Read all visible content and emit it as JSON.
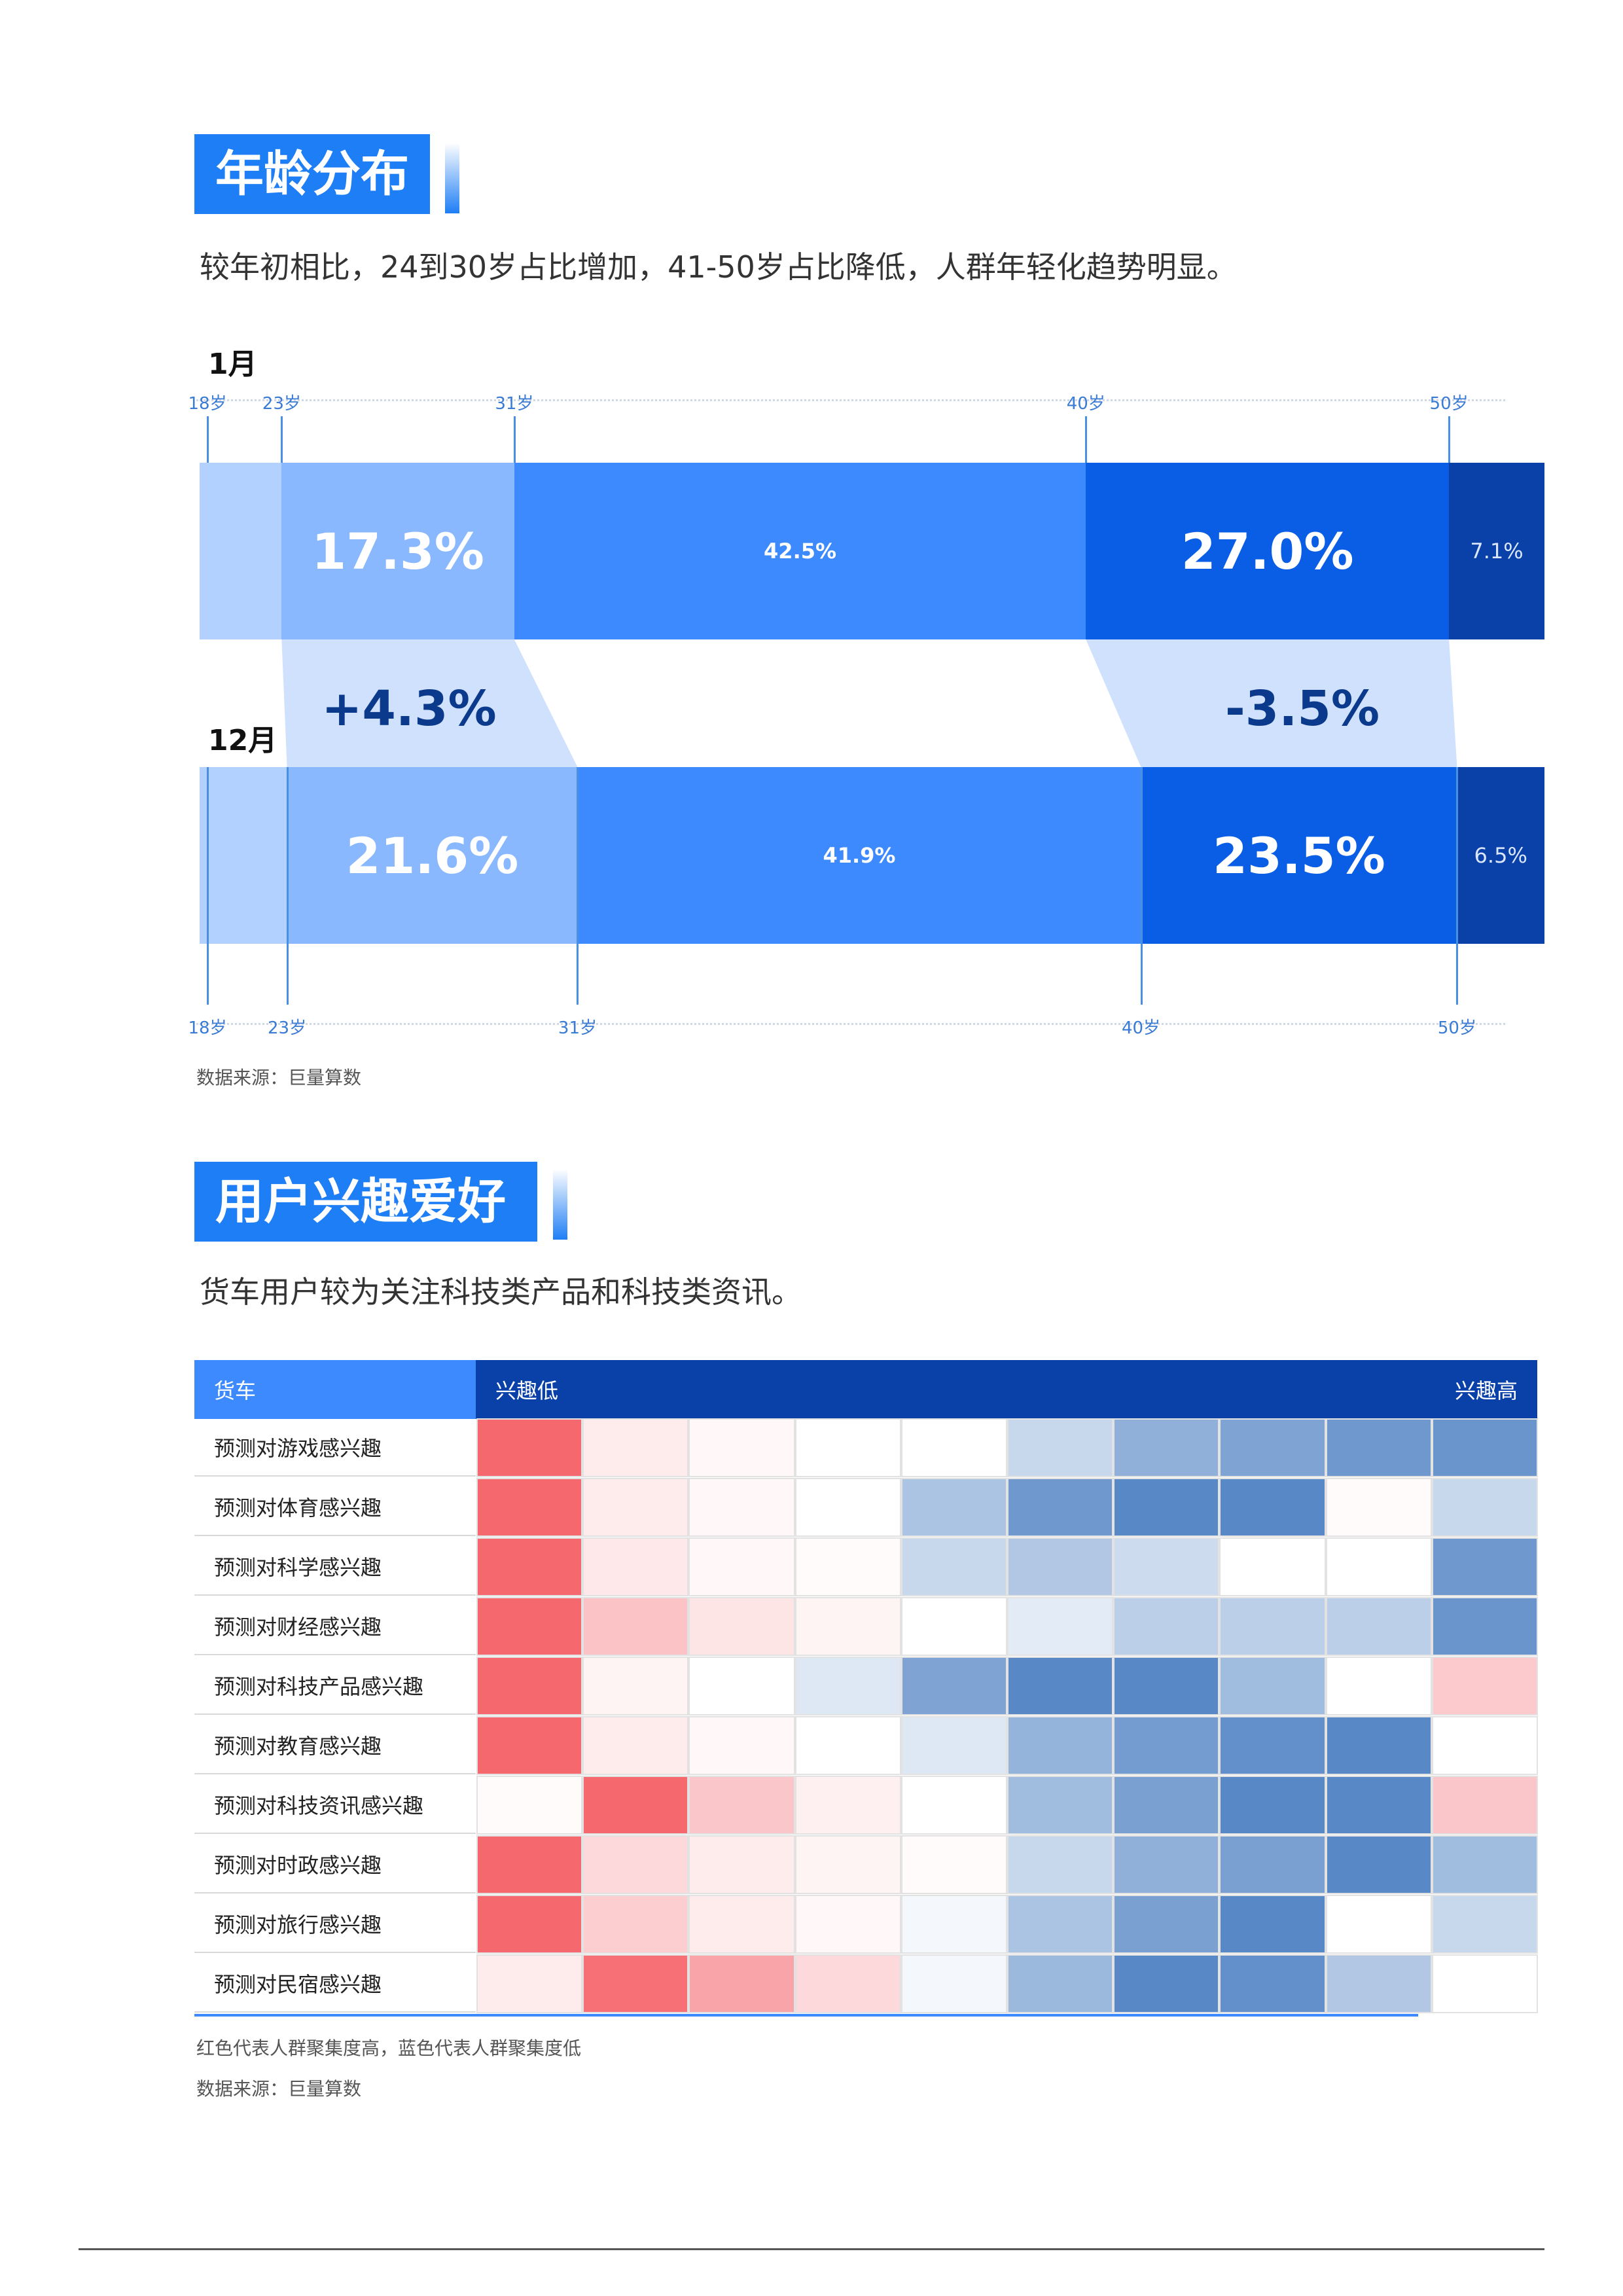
{
  "age_section": {
    "title": "年龄分布",
    "description": "较年初相比，24到30岁占比增加，41-50岁占比降低，人群年轻化趋势明显。",
    "jan": {
      "label": "1月",
      "ticks": [
        "18岁",
        "23岁",
        "31岁",
        "40岁",
        "50岁"
      ],
      "segments": [
        {
          "value": "",
          "share": 0.061,
          "color": "#b3d1ff"
        },
        {
          "value": "17.3%",
          "share": 0.173,
          "color": "#8ab8ff"
        },
        {
          "value": "42.5%",
          "share": 0.425,
          "color": "#3d8aff"
        },
        {
          "value": "27.0%",
          "share": 0.27,
          "color": "#0a5ee6"
        },
        {
          "value": "7.1%",
          "share": 0.071,
          "color": "#0a41a8"
        }
      ]
    },
    "dec": {
      "label": "12月",
      "ticks": [
        "18岁",
        "23岁",
        "31岁",
        "40岁",
        "50岁"
      ],
      "segments": [
        {
          "value": "",
          "share": 0.065,
          "color": "#b3d1ff"
        },
        {
          "value": "21.6%",
          "share": 0.216,
          "color": "#8ab8ff"
        },
        {
          "value": "41.9%",
          "share": 0.419,
          "color": "#3d8aff"
        },
        {
          "value": "23.5%",
          "share": 0.235,
          "color": "#0a5ee6"
        },
        {
          "value": "6.5%",
          "share": 0.065,
          "color": "#0a41a8"
        }
      ]
    },
    "change_increase": "+4.3%",
    "change_decrease": "-3.5%",
    "source": "数据来源：巨量算数"
  },
  "interest_section": {
    "title": "用户兴趣爱好",
    "description": "货车用户较为关注科技类产品和科技类资讯。",
    "header_category": "货车",
    "header_low": "兴趣低",
    "header_high": "兴趣高",
    "rows": [
      {
        "label": "预测对游戏感兴趣",
        "levels": [
          4,
          0.5,
          0.2,
          0,
          0,
          -1,
          -2,
          -2.3,
          -2.6,
          -2.7
        ]
      },
      {
        "label": "预测对体育感兴趣",
        "levels": [
          4,
          0.5,
          0.2,
          0,
          -1.5,
          -2.6,
          -3,
          -3,
          0.1,
          -1
        ]
      },
      {
        "label": "预测对科学感兴趣",
        "levels": [
          4,
          0.6,
          0.2,
          0.1,
          -1,
          -1.4,
          -0.9,
          0,
          0,
          -2.6
        ]
      },
      {
        "label": "预测对财经感兴趣",
        "levels": [
          4,
          1.6,
          0.7,
          0.3,
          0,
          -0.5,
          -1.2,
          -1.2,
          -1.2,
          -2.7
        ]
      },
      {
        "label": "预测对科技产品感兴趣",
        "levels": [
          4,
          0.3,
          0,
          -0.6,
          -2.3,
          -3,
          -3,
          -1.7,
          0,
          1.4
        ]
      },
      {
        "label": "预测对教育感兴趣",
        "levels": [
          4,
          0.5,
          0.2,
          0,
          -0.6,
          -1.9,
          -2.5,
          -2.8,
          -3,
          0
        ]
      },
      {
        "label": "预测对科技资讯感兴趣",
        "levels": [
          0.1,
          4,
          1.5,
          0.4,
          0,
          -1.7,
          -2.4,
          -3,
          -3,
          1.5
        ]
      },
      {
        "label": "预测对时政感兴趣",
        "levels": [
          4,
          1,
          0.5,
          0.3,
          0.1,
          -1,
          -2,
          -2.4,
          -3,
          -1.7
        ]
      },
      {
        "label": "预测对旅行感兴趣",
        "levels": [
          4,
          1.3,
          0.5,
          0.2,
          -0.2,
          -1.5,
          -2.4,
          -3,
          0,
          -1
        ]
      },
      {
        "label": "预测对民宿感兴趣",
        "levels": [
          0.5,
          3.8,
          2.4,
          1,
          -0.2,
          -1.8,
          -3,
          -2.8,
          -1.4,
          0
        ]
      }
    ],
    "note": "红色代表人群聚集度高，蓝色代表人群聚集度低",
    "source": "数据来源：巨量算数"
  }
}
